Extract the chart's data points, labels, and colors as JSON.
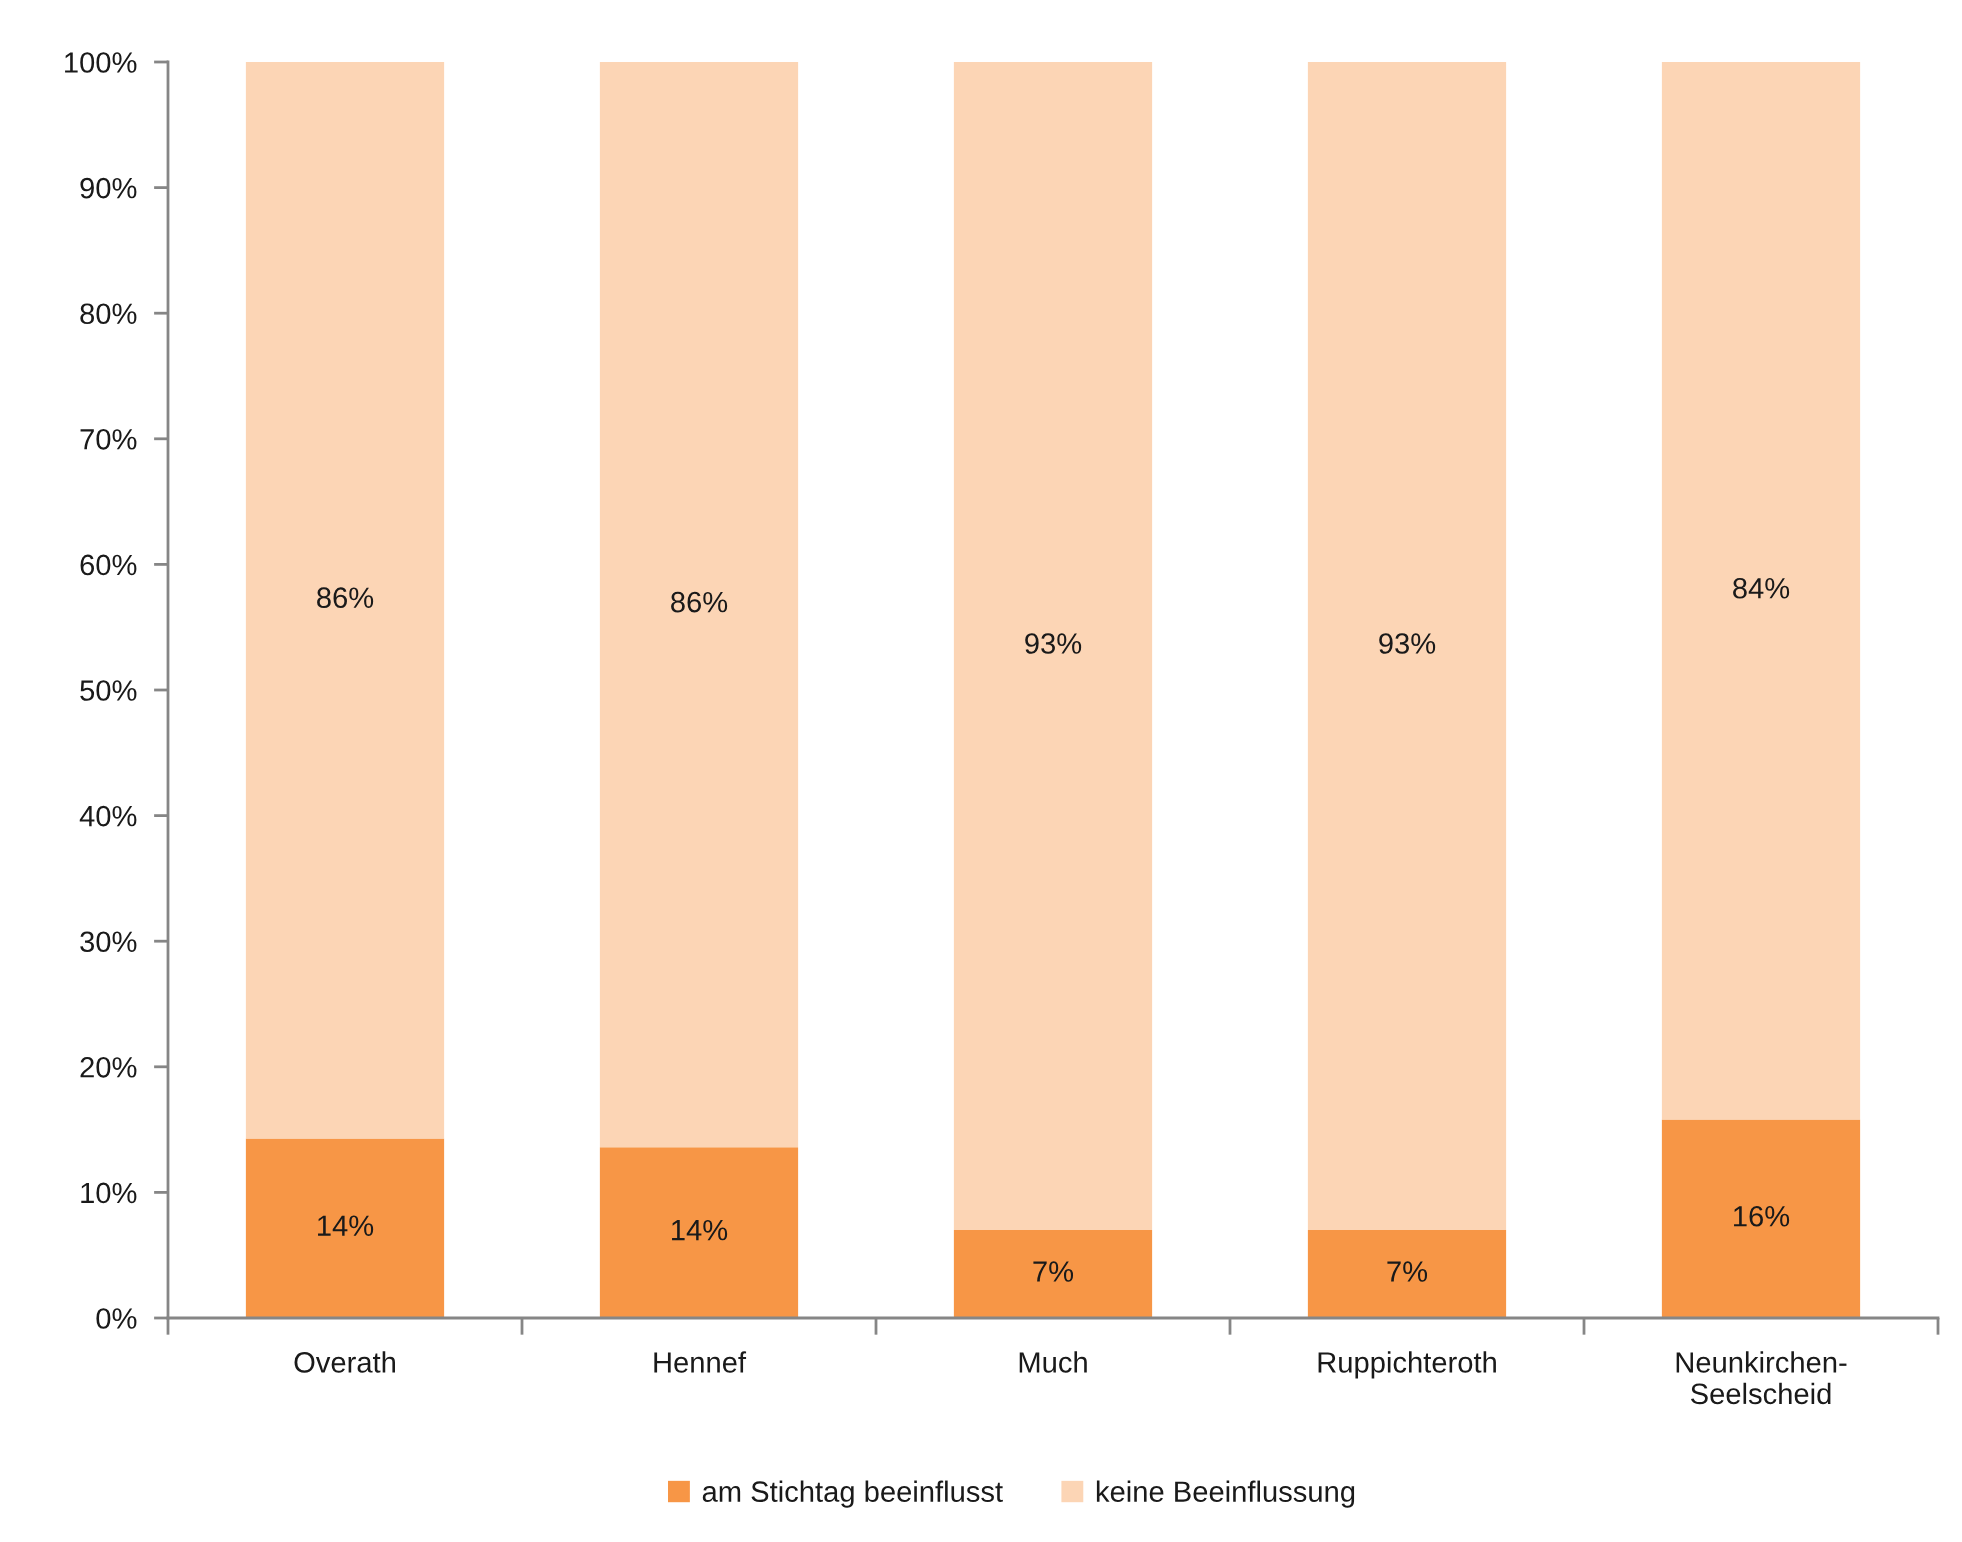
{
  "chart_data": {
    "type": "bar",
    "stacked": true,
    "categories": [
      "Overath",
      "Hennef",
      "Much",
      "Ruppichteroth",
      "Neunkirchen-\nSeelscheid"
    ],
    "series": [
      {
        "name": "am Stichtag beeinflusst",
        "color": "#f79646",
        "values": [
          14.3,
          13.6,
          7.0,
          7.0,
          15.8
        ],
        "value_labels": [
          "14%",
          "14%",
          "7%",
          "7%",
          "16%"
        ]
      },
      {
        "name": "keine Beeinflussung",
        "color": "#fcd5b5",
        "values": [
          85.7,
          86.4,
          93.0,
          93.0,
          84.2
        ],
        "value_labels": [
          "86%",
          "86%",
          "93%",
          "93%",
          "84%"
        ]
      }
    ],
    "ylim": [
      0,
      100
    ],
    "yticks": [
      {
        "value": 0,
        "label": "0%"
      },
      {
        "value": 10,
        "label": "10%"
      },
      {
        "value": 20,
        "label": "20%"
      },
      {
        "value": 30,
        "label": "30%"
      },
      {
        "value": 40,
        "label": "40%"
      },
      {
        "value": 50,
        "label": "50%"
      },
      {
        "value": 60,
        "label": "60%"
      },
      {
        "value": 70,
        "label": "70%"
      },
      {
        "value": 80,
        "label": "80%"
      },
      {
        "value": 90,
        "label": "90%"
      },
      {
        "value": 100,
        "label": "100%"
      }
    ],
    "grid": false,
    "legend": "bottom"
  }
}
